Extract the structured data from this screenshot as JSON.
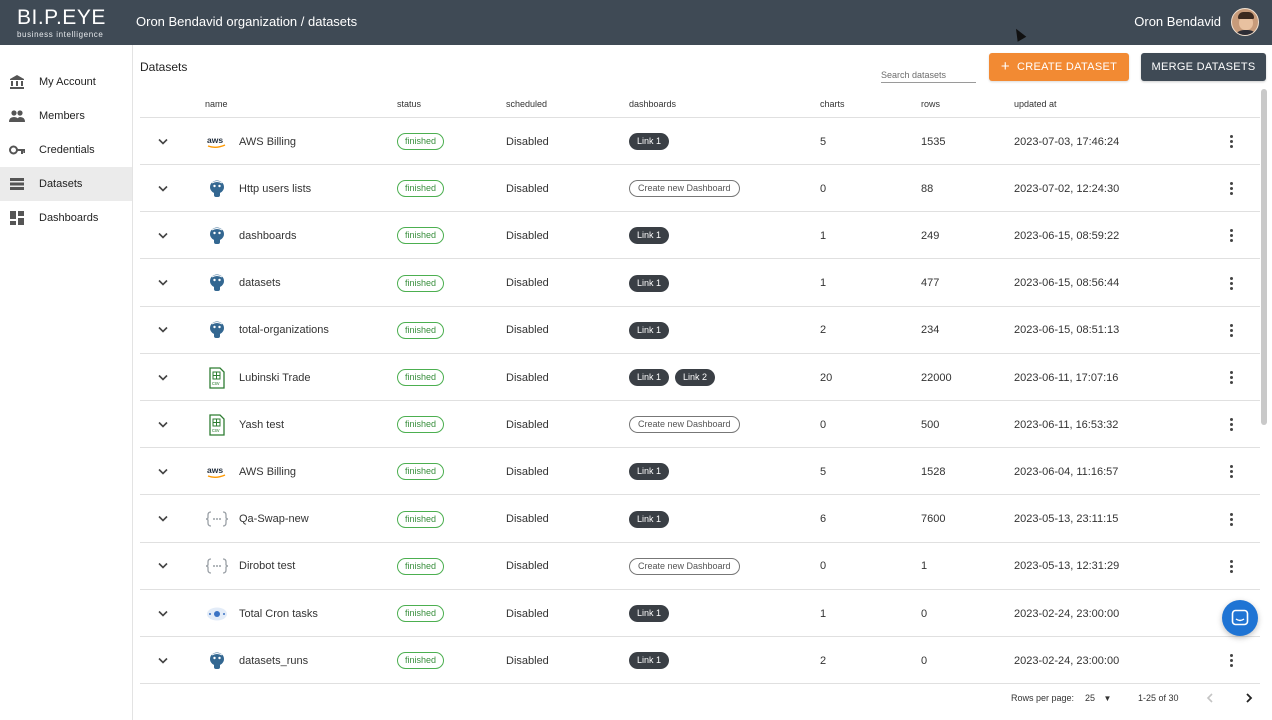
{
  "header": {
    "logo_main": "BI.P.EYE",
    "logo_sub": "business intelligence",
    "breadcrumb": "Oron Bendavid organization / datasets",
    "user_name": "Oron Bendavid"
  },
  "sidebar": {
    "items": [
      {
        "label": "My Account",
        "icon": "bank-icon",
        "active": false
      },
      {
        "label": "Members",
        "icon": "people-icon",
        "active": false
      },
      {
        "label": "Credentials",
        "icon": "key-icon",
        "active": false
      },
      {
        "label": "Datasets",
        "icon": "list-icon",
        "active": true
      },
      {
        "label": "Dashboards",
        "icon": "dashboard-icon",
        "active": false
      }
    ]
  },
  "main": {
    "title": "Datasets",
    "search_placeholder": "Search datasets",
    "create_label": "CREATE DATASET",
    "merge_label": "MERGE DATASETS"
  },
  "colors": {
    "accent": "#f28a33",
    "header": "#3f4a55",
    "status": "#4caf50",
    "chat": "#1f74d4"
  },
  "table": {
    "columns": [
      "name",
      "status",
      "scheduled",
      "dashboards",
      "charts",
      "rows",
      "updated at"
    ],
    "rows": [
      {
        "source": "aws",
        "name": "AWS Billing",
        "status": "finished",
        "scheduled": "Disabled",
        "dashboards": [
          "Link 1"
        ],
        "charts": "5",
        "rows": "1535",
        "updated": "2023-07-03, 17:46:24"
      },
      {
        "source": "postgres",
        "name": "Http users lists",
        "status": "finished",
        "scheduled": "Disabled",
        "dashboards": [],
        "charts": "0",
        "rows": "88",
        "updated": "2023-07-02, 12:24:30"
      },
      {
        "source": "postgres",
        "name": "dashboards",
        "status": "finished",
        "scheduled": "Disabled",
        "dashboards": [
          "Link 1"
        ],
        "charts": "1",
        "rows": "249",
        "updated": "2023-06-15, 08:59:22"
      },
      {
        "source": "postgres",
        "name": "datasets",
        "status": "finished",
        "scheduled": "Disabled",
        "dashboards": [
          "Link 1"
        ],
        "charts": "1",
        "rows": "477",
        "updated": "2023-06-15, 08:56:44"
      },
      {
        "source": "postgres",
        "name": "total-organizations",
        "status": "finished",
        "scheduled": "Disabled",
        "dashboards": [
          "Link 1"
        ],
        "charts": "2",
        "rows": "234",
        "updated": "2023-06-15, 08:51:13"
      },
      {
        "source": "csv",
        "name": "Lubinski Trade",
        "status": "finished",
        "scheduled": "Disabled",
        "dashboards": [
          "Link 1",
          "Link 2"
        ],
        "charts": "20",
        "rows": "22000",
        "updated": "2023-06-11, 17:07:16"
      },
      {
        "source": "csv",
        "name": "Yash test",
        "status": "finished",
        "scheduled": "Disabled",
        "dashboards": [],
        "charts": "0",
        "rows": "500",
        "updated": "2023-06-11, 16:53:32"
      },
      {
        "source": "aws",
        "name": "AWS Billing",
        "status": "finished",
        "scheduled": "Disabled",
        "dashboards": [
          "Link 1"
        ],
        "charts": "5",
        "rows": "1528",
        "updated": "2023-06-04, 11:16:57"
      },
      {
        "source": "json",
        "name": "Qa-Swap-new",
        "status": "finished",
        "scheduled": "Disabled",
        "dashboards": [
          "Link 1"
        ],
        "charts": "6",
        "rows": "7600",
        "updated": "2023-05-13, 23:11:15"
      },
      {
        "source": "json",
        "name": "Dirobot test",
        "status": "finished",
        "scheduled": "Disabled",
        "dashboards": [],
        "charts": "0",
        "rows": "1",
        "updated": "2023-05-13, 12:31:29"
      },
      {
        "source": "cron",
        "name": "Total Cron tasks",
        "status": "finished",
        "scheduled": "Disabled",
        "dashboards": [
          "Link 1"
        ],
        "charts": "1",
        "rows": "0",
        "updated": "2023-02-24, 23:00:00"
      },
      {
        "source": "postgres",
        "name": "datasets_runs",
        "status": "finished",
        "scheduled": "Disabled",
        "dashboards": [
          "Link 1"
        ],
        "charts": "2",
        "rows": "0",
        "updated": "2023-02-24, 23:00:00"
      }
    ],
    "create_dashboard_label": "Create new Dashboard"
  },
  "pagination": {
    "rows_per_page_label": "Rows per page:",
    "rows_per_page": "25",
    "range": "1-25 of 30"
  }
}
